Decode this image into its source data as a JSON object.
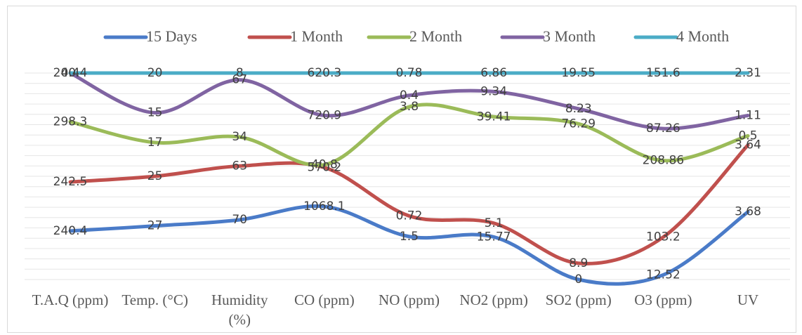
{
  "chart_data": {
    "type": "line",
    "stacked": "percent",
    "categories": [
      "T.A.Q (ppm)",
      "Temp. (°C)",
      "Humidity (%)",
      "CO (ppm)",
      "NO (ppm)",
      "NO2 (ppm)",
      "SO2 (ppm)",
      "O3 (ppm)",
      "UV"
    ],
    "series": [
      {
        "name": "15 Days",
        "color": "#4a7bc8",
        "values": [
          240.4,
          27,
          70,
          1068.1,
          1.5,
          15.77,
          0,
          12.52,
          3.68
        ]
      },
      {
        "name": "1 Month",
        "color": "#c0504d",
        "values": [
          242.5,
          25,
          63,
          570.2,
          0.72,
          5.1,
          8.9,
          103.2,
          3.64
        ]
      },
      {
        "name": "2 Month",
        "color": "#9bbb59",
        "values": [
          298.3,
          17,
          34,
          40.8,
          3.8,
          39.41,
          76.29,
          208.86,
          0.5
        ]
      },
      {
        "name": "3 Month",
        "color": "#8064a2",
        "values": [
          240.4,
          15,
          67,
          720.9,
          0.4,
          9.34,
          8.23,
          87.26,
          1.11
        ]
      },
      {
        "name": "4 Month",
        "color": "#4bacc6",
        "values": [
          0.4,
          20,
          8,
          620.3,
          0.78,
          6.86,
          19.55,
          151.6,
          2.31
        ]
      }
    ],
    "grid": true,
    "legend": "top"
  }
}
